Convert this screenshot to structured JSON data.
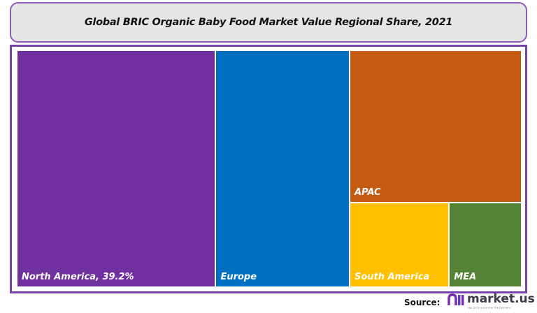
{
  "chart_data": {
    "type": "treemap",
    "title": "Global BRIC Organic Baby Food Market Value Regional Share, 2021",
    "unit": "%",
    "items": [
      {
        "name": "North America",
        "label": "North America, 39.2%",
        "value": 39.2,
        "color": "#7030A0"
      },
      {
        "name": "Europe",
        "label": "Europe",
        "value": 26.4,
        "color": "#0070C0"
      },
      {
        "name": "APAC",
        "label": "APAC",
        "value": 21.8,
        "color": "#C55A11"
      },
      {
        "name": "South America",
        "label": "South America",
        "value": 7.0,
        "color": "#FFC000"
      },
      {
        "name": "MEA",
        "label": "MEA",
        "value": 5.1,
        "color": "#548235"
      }
    ]
  },
  "footer": {
    "source_label": "Source:",
    "logo_text": "market.us",
    "logo_tagline": "ONE STOP SHOP FOR THE REPORTS"
  },
  "colors": {
    "frame": "#7a3fb0",
    "title_bg": "#e7e6e6"
  }
}
